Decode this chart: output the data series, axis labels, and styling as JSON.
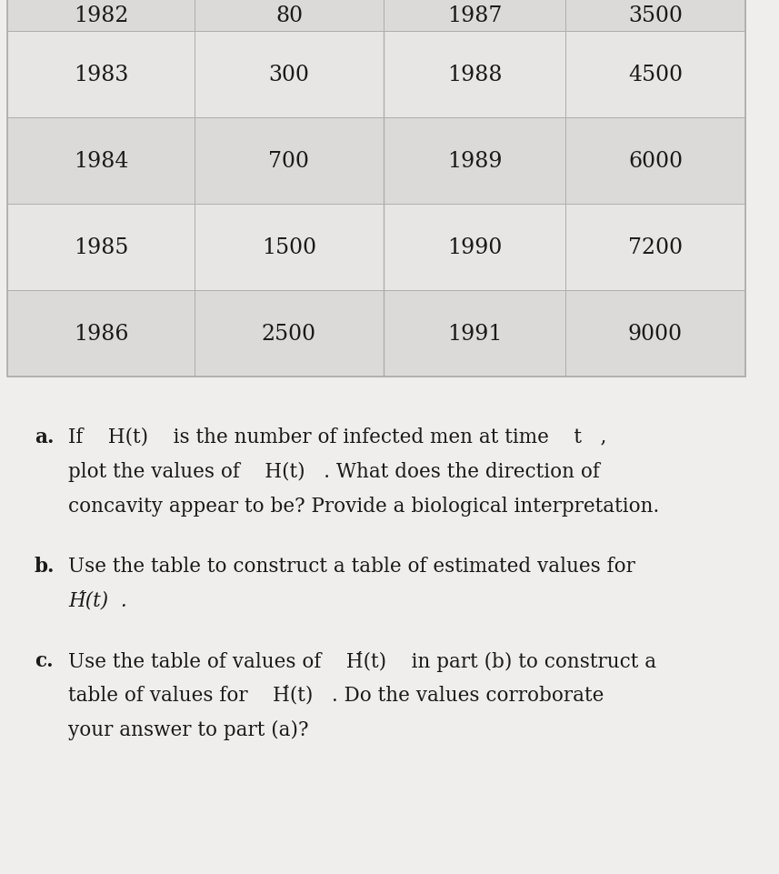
{
  "background_color": "#f0eeec",
  "table_bg_light": "#e8e6e4",
  "table_bg_dark": "#dcdad8",
  "table_border_color": "#b0aeac",
  "text_color": "#1a1a1a",
  "table_rows": [
    [
      "1983",
      "300",
      "1988",
      "4500"
    ],
    [
      "1984",
      "700",
      "1989",
      "6000"
    ],
    [
      "1985",
      "1500",
      "1990",
      "7200"
    ],
    [
      "1986",
      "2500",
      "1991",
      "9000"
    ]
  ],
  "top_row_partial": [
    "1982",
    "80",
    "1987",
    "3500"
  ],
  "font_size_table": 17,
  "font_size_text": 15.5,
  "label_a": "a.",
  "label_b": "b.",
  "label_c": "c.",
  "line_a1": "If    H(t)    is the number of infected men at time    t   ,",
  "line_a2": "plot the values of    H(t)   . What does the direction of",
  "line_a3": "concavity appear to be? Provide a biological interpretation.",
  "line_b1": "Use the table to construct a table of estimated values for",
  "line_b2": "H́(t)  .",
  "line_c1": "Use the table of values of    H́(t)    in part (b) to construct a",
  "line_c2": "table of values for    H́(t)   . Do the values corroborate",
  "line_c3": "your answer to part (a)?"
}
